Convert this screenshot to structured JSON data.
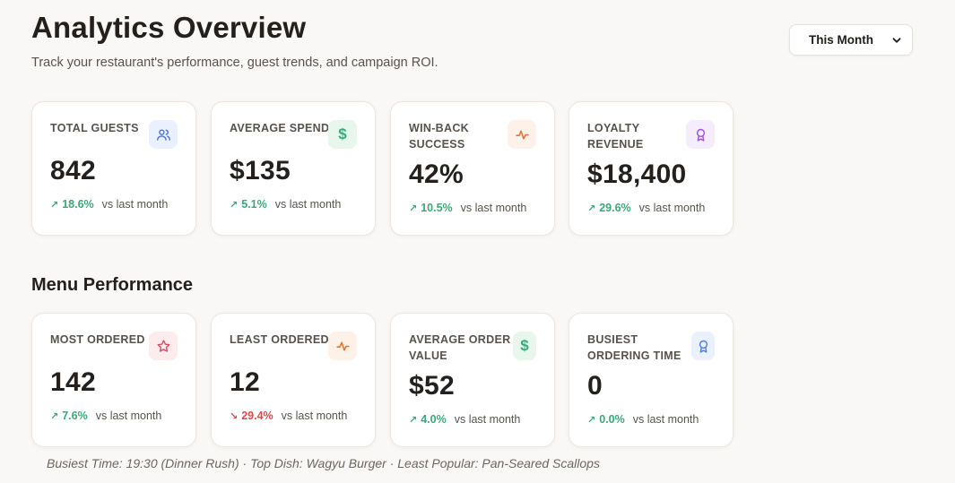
{
  "header": {
    "title": "Analytics Overview",
    "subtitle": "Track your restaurant's performance, guest trends, and campaign ROI.",
    "period_select": {
      "value": "This Month",
      "icon": "chevron-down-icon"
    }
  },
  "overview_cards": [
    {
      "label": "TOTAL GUESTS",
      "value": "842",
      "trend_dir": "up",
      "trend_arrow": "↗",
      "trend_pct": "18.6%",
      "trend_cmp": "vs last month",
      "icon": "users-icon",
      "icon_color": "#4a72d9"
    },
    {
      "label": "AVERAGE SPEND",
      "value": "$135",
      "trend_dir": "up",
      "trend_arrow": "↗",
      "trend_pct": "5.1%",
      "trend_cmp": "vs last month",
      "icon": "dollar-icon",
      "icon_glyph": "$",
      "icon_color": "#3aa87a"
    },
    {
      "label": "WIN-BACK SUCCESS",
      "value": "42%",
      "trend_dir": "up",
      "trend_arrow": "↗",
      "trend_pct": "10.5%",
      "trend_cmp": "vs last month",
      "icon": "activity-icon",
      "icon_color": "#e0743a"
    },
    {
      "label": "LOYALTY REVENUE",
      "value": "$18,400",
      "trend_dir": "up",
      "trend_arrow": "↗",
      "trend_pct": "29.6%",
      "trend_cmp": "vs last month",
      "icon": "award-icon",
      "icon_color": "#9b52d8"
    }
  ],
  "menu_section": {
    "title": "Menu Performance",
    "cards": [
      {
        "label": "MOST ORDERED",
        "value": "142",
        "trend_dir": "up",
        "trend_arrow": "↗",
        "trend_pct": "7.6%",
        "trend_cmp": "vs last month",
        "icon": "star-icon",
        "icon_color": "#db4c5e"
      },
      {
        "label": "LEAST ORDERED",
        "value": "12",
        "trend_dir": "down",
        "trend_arrow": "↘",
        "trend_pct": "29.4%",
        "trend_cmp": "vs last month",
        "icon": "activity-icon",
        "icon_color": "#e0743a"
      },
      {
        "label": "AVERAGE ORDER VALUE",
        "value": "$52",
        "trend_dir": "up",
        "trend_arrow": "↗",
        "trend_pct": "4.0%",
        "trend_cmp": "vs last month",
        "icon": "dollar-icon",
        "icon_glyph": "$",
        "icon_color": "#3aa87a"
      },
      {
        "label": "BUSIEST ORDERING TIME",
        "value": "0",
        "trend_dir": "up",
        "trend_arrow": "↗",
        "trend_pct": "0.0%",
        "trend_cmp": "vs last month",
        "icon": "award-icon",
        "icon_color": "#4a7fd9"
      }
    ]
  },
  "footer_note": "Busiest Time: 19:30 (Dinner Rush) · Top Dish: Wagyu Burger · Least Popular: Pan-Seared Scallops"
}
